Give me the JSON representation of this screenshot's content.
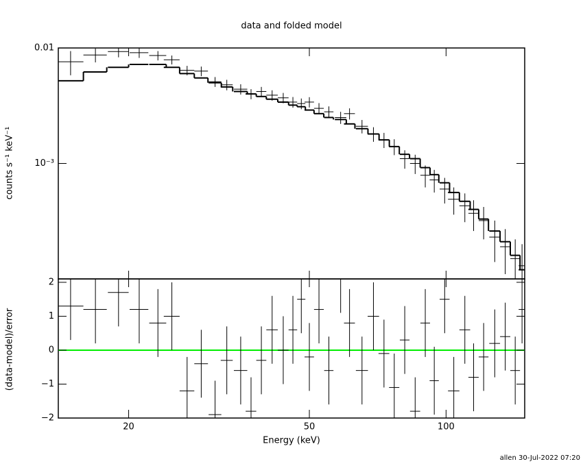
{
  "chart_data": [
    {
      "type": "errorbar",
      "title": "data and folded model",
      "ylabel": "counts s⁻¹ keV⁻¹",
      "log_x": true,
      "log_y": true,
      "color": "#000000",
      "xlim": [
        14,
        149
      ],
      "ylim": [
        0.0001,
        0.01
      ],
      "yticks": [
        {
          "value": 0.01,
          "label": "0.01"
        },
        {
          "value": 0.001,
          "label": "10⁻³"
        }
      ],
      "x": [
        14.9,
        16.9,
        19.0,
        21.1,
        23.2,
        24.9,
        26.9,
        28.9,
        31.0,
        32.9,
        35.3,
        37.2,
        39.2,
        41.4,
        43.8,
        46.0,
        48.0,
        50.0,
        52.5,
        55.2,
        58.6,
        61.3,
        65.3,
        69.2,
        73.0,
        76.9,
        81.1,
        85.5,
        90.0,
        94.2,
        99.3,
        104,
        110,
        115,
        121,
        128,
        135,
        142,
        147
      ],
      "xerr": [
        1.0,
        1.0,
        1.0,
        1.0,
        1.0,
        1.0,
        1.0,
        1.0,
        1.0,
        1.0,
        1.2,
        1.0,
        1.0,
        1.2,
        1.2,
        1.0,
        1.0,
        1.2,
        1.3,
        1.3,
        1.7,
        1.7,
        2,
        2,
        2,
        2,
        2,
        2.2,
        2.2,
        2.2,
        2.5,
        3,
        3,
        3,
        3,
        3.5,
        3.5,
        3.5,
        2.5
      ],
      "values": [
        0.0076,
        0.0087,
        0.0093,
        0.0091,
        0.0086,
        0.0079,
        0.0064,
        0.0063,
        0.0051,
        0.0048,
        0.0044,
        0.004,
        0.0042,
        0.0039,
        0.0037,
        0.0034,
        0.0033,
        0.0034,
        0.003,
        0.0028,
        0.0025,
        0.0027,
        0.0021,
        0.0018,
        0.0016,
        0.0014,
        0.0011,
        0.001,
        0.00079,
        0.00072,
        0.0006,
        0.00049,
        0.00043,
        0.00037,
        0.00032,
        0.00023,
        0.00019,
        0.00015,
        0.00013
      ],
      "errors": [
        0.0018,
        0.0012,
        0.001,
        0.0009,
        0.0008,
        0.0007,
        0.0006,
        0.0006,
        0.0005,
        0.0005,
        0.00045,
        0.0004,
        0.0004,
        0.0004,
        0.00038,
        0.00036,
        0.00035,
        0.00035,
        0.00033,
        0.00032,
        0.0003,
        0.0003,
        0.00028,
        0.00026,
        0.00024,
        0.00022,
        0.0002,
        0.00019,
        0.00017,
        0.00016,
        0.00015,
        0.00013,
        0.00012,
        0.00011,
        0.0001,
        9e-05,
        8e-05,
        7e-05,
        7e-05
      ],
      "model": [
        0.0052,
        0.0062,
        0.0068,
        0.0072,
        0.0072,
        0.0068,
        0.006,
        0.0055,
        0.005,
        0.0046,
        0.0042,
        0.004,
        0.0038,
        0.0036,
        0.0034,
        0.0032,
        0.0031,
        0.0029,
        0.0027,
        0.0025,
        0.0024,
        0.0022,
        0.002,
        0.0018,
        0.0016,
        0.0014,
        0.0012,
        0.0011,
        0.00092,
        0.0008,
        0.00068,
        0.00056,
        0.00047,
        0.0004,
        0.00033,
        0.00026,
        0.00021,
        0.00016,
        0.00012
      ]
    },
    {
      "type": "residual",
      "xlabel": "Energy (keV)",
      "ylabel": "(data-model)/error",
      "log_x": true,
      "color": "#000000",
      "xlim": [
        14,
        149
      ],
      "ylim": [
        -2,
        2.1
      ],
      "xticks": [
        20,
        50,
        100
      ],
      "yticks": [
        {
          "value": -2,
          "label": "−2"
        },
        {
          "value": -1,
          "label": "−1"
        },
        0,
        1,
        2
      ],
      "reference_line": {
        "value": 0,
        "color": "#00ee00"
      },
      "x": [
        14.9,
        16.9,
        19.0,
        21.1,
        23.2,
        24.9,
        26.9,
        28.9,
        31.0,
        32.9,
        35.3,
        37.2,
        39.2,
        41.4,
        43.8,
        46.0,
        48.0,
        50.0,
        52.5,
        55.2,
        58.6,
        61.3,
        65.3,
        69.2,
        73.0,
        76.9,
        81.1,
        85.5,
        90.0,
        94.2,
        99.3,
        104,
        110,
        115,
        121,
        128,
        135,
        142,
        147
      ],
      "xerr": [
        1.0,
        1.0,
        1.0,
        1.0,
        1.0,
        1.0,
        1.0,
        1.0,
        1.0,
        1.0,
        1.2,
        1.0,
        1.0,
        1.2,
        1.2,
        1.0,
        1.0,
        1.2,
        1.3,
        1.3,
        1.7,
        1.7,
        2,
        2,
        2,
        2,
        2,
        2.2,
        2.2,
        2.2,
        2.5,
        3,
        3,
        3,
        3,
        3.5,
        3.5,
        3.5,
        2.5
      ],
      "values": [
        1.3,
        1.2,
        1.7,
        1.2,
        0.8,
        1.0,
        -1.2,
        -0.4,
        -1.9,
        -0.3,
        -0.6,
        -1.8,
        -0.3,
        0.6,
        0.0,
        0.6,
        1.5,
        -0.2,
        1.2,
        -0.6,
        2.1,
        0.8,
        -0.6,
        1.0,
        -0.1,
        -1.1,
        0.3,
        -1.8,
        0.8,
        -0.9,
        1.5,
        -1.2,
        0.6,
        -0.8,
        -0.2,
        0.2,
        0.4,
        -0.6,
        1.2
      ],
      "errors": [
        1,
        1,
        1,
        1,
        1,
        1,
        1,
        1,
        1,
        1,
        1,
        1,
        1,
        1,
        1,
        1,
        1,
        1,
        1,
        1,
        1,
        1,
        1,
        1,
        1,
        1,
        1,
        1,
        1,
        1,
        1,
        1,
        1,
        1,
        1,
        1,
        1,
        1,
        1
      ]
    }
  ],
  "footer": "allen 30-Jul-2022 07:20"
}
